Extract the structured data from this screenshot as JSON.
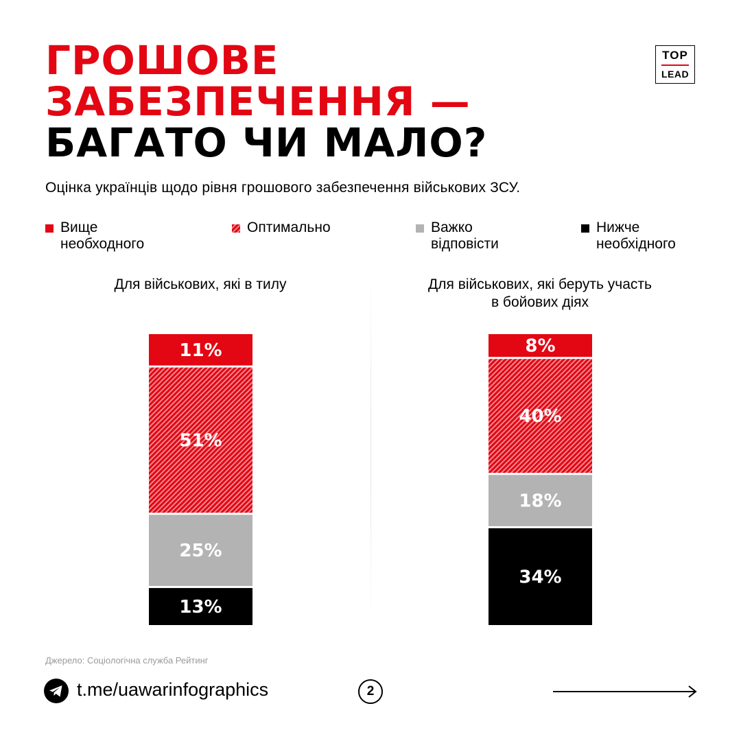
{
  "header": {
    "title_line1": "ГРОШОВЕ",
    "title_line2": "ЗАБЕЗПЕЧЕННЯ —",
    "title_line3": "БАГАТО ЧИ МАЛО?",
    "subtitle": "Оцінка українців щодо рівня грошового забезпечення військових ЗСУ."
  },
  "logo": {
    "line1": "TOP",
    "line2": "LEAD"
  },
  "legend": [
    {
      "line1": "Вище",
      "line2": "необходного",
      "color": "#e30613",
      "pattern": "solid"
    },
    {
      "line1": "Оптимально",
      "line2": "",
      "color": "#e30613",
      "pattern": "hatched"
    },
    {
      "line1": "Важко",
      "line2": "відповісти",
      "color": "#b3b3b3",
      "pattern": "solid"
    },
    {
      "line1": "Нижче",
      "line2": "необхідного",
      "color": "#000000",
      "pattern": "solid"
    }
  ],
  "chart_data": [
    {
      "type": "bar",
      "stacked": true,
      "title_line1": "Для військових, які в тилу",
      "title_line2": "",
      "segments": [
        {
          "series": "Вище необходного",
          "value": 11,
          "label": "11%",
          "color": "#e30613",
          "pattern": "solid"
        },
        {
          "series": "Оптимально",
          "value": 51,
          "label": "51%",
          "color": "#e30613",
          "pattern": "hatched"
        },
        {
          "series": "Важко відповісти",
          "value": 25,
          "label": "25%",
          "color": "#b3b3b3",
          "pattern": "solid"
        },
        {
          "series": "Нижче необхідного",
          "value": 13,
          "label": "13%",
          "color": "#000000",
          "pattern": "solid"
        }
      ]
    },
    {
      "type": "bar",
      "stacked": true,
      "title_line1": "Для військових, які беруть участь",
      "title_line2": "в бойових діях",
      "segments": [
        {
          "series": "Вище необходного",
          "value": 8,
          "label": "8%",
          "color": "#e30613",
          "pattern": "solid"
        },
        {
          "series": "Оптимально",
          "value": 40,
          "label": "40%",
          "color": "#e30613",
          "pattern": "hatched"
        },
        {
          "series": "Важко відповісти",
          "value": 18,
          "label": "18%",
          "color": "#b3b3b3",
          "pattern": "solid"
        },
        {
          "series": "Нижче необхідного",
          "value": 34,
          "label": "34%",
          "color": "#000000",
          "pattern": "solid"
        }
      ]
    }
  ],
  "footer": {
    "source": "Джерело: Соціологічна служба Рейтинг",
    "link": "t.me/uawarinfographics",
    "page_number": "2",
    "telegram_icon": "telegram-icon",
    "next_icon": "arrow-right-icon"
  }
}
